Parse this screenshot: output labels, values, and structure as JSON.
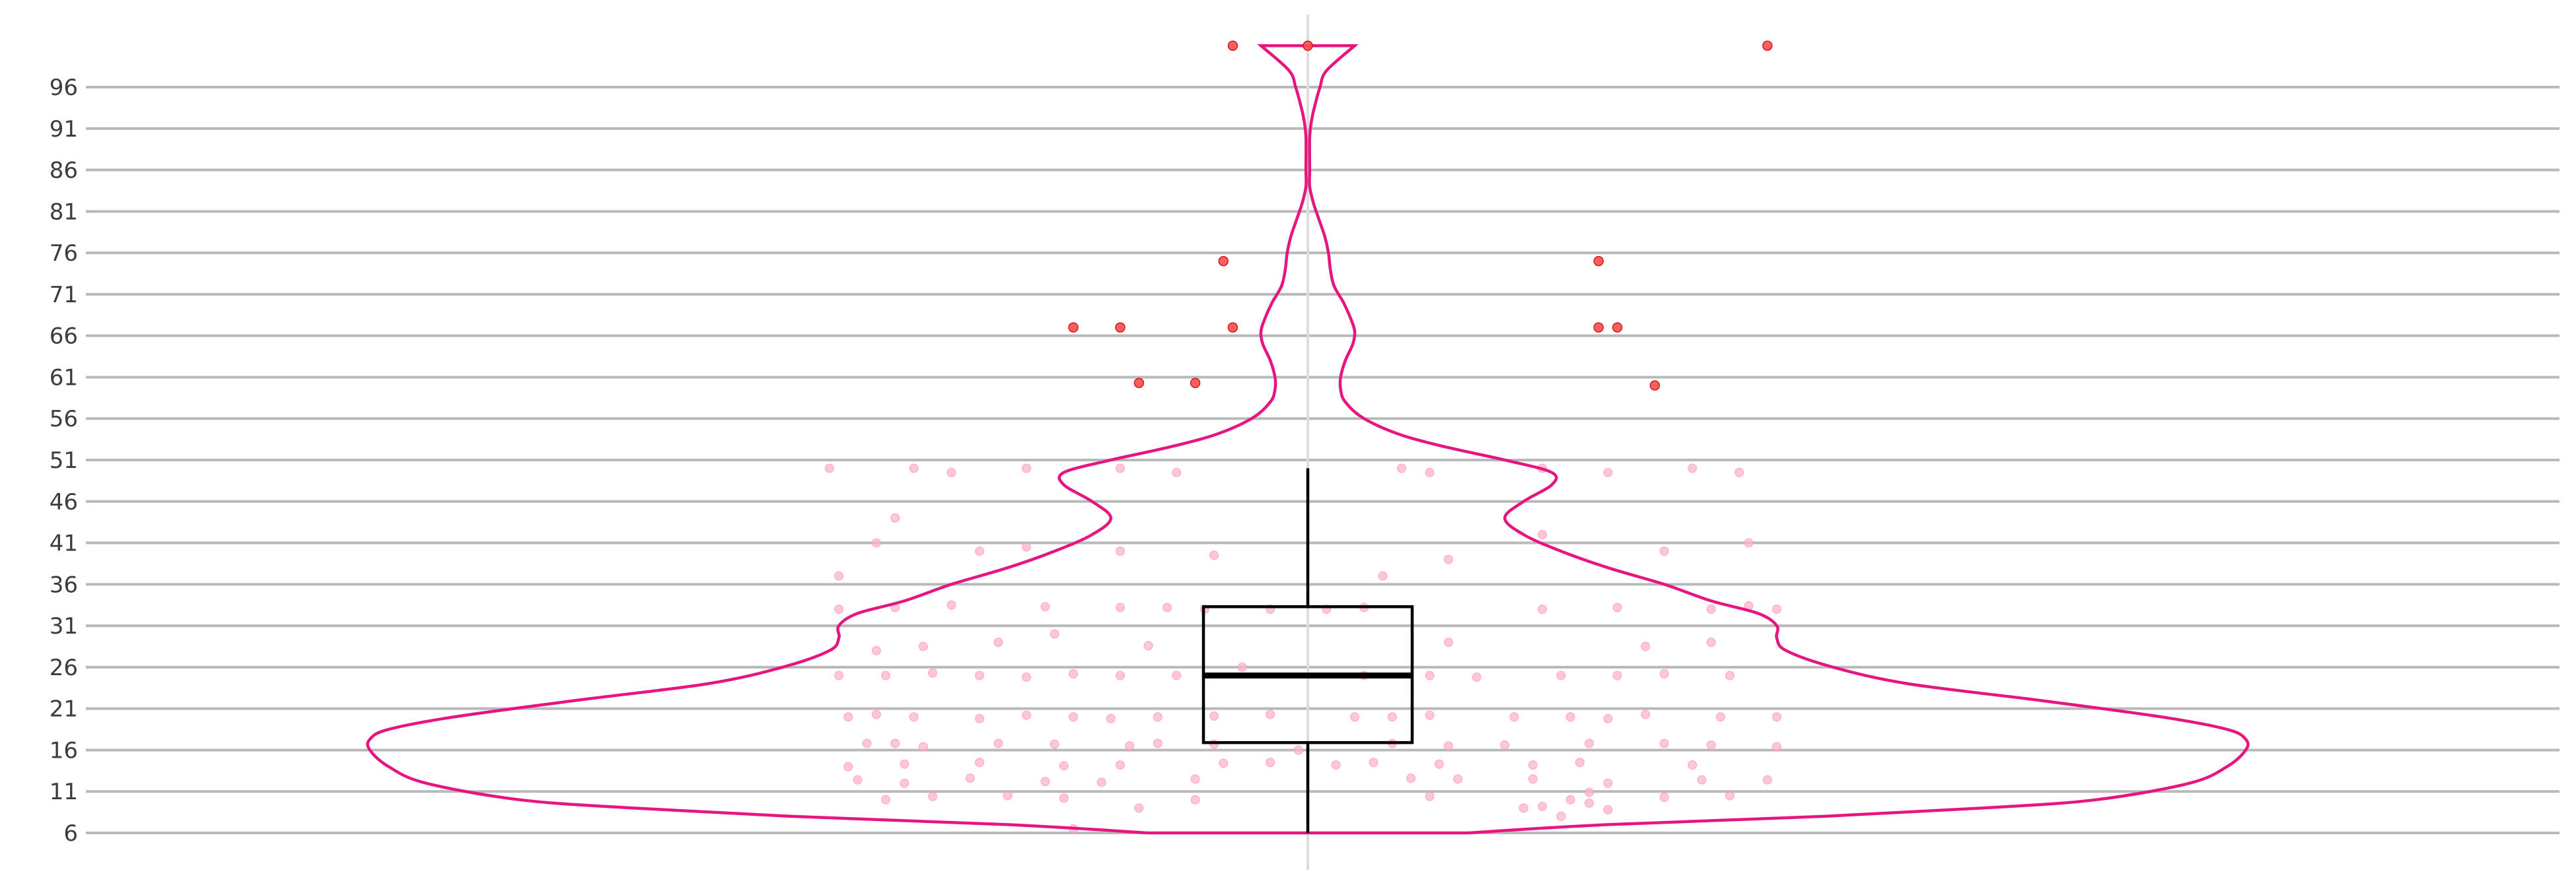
{
  "chart_data": {
    "type": "violin",
    "title": "",
    "xlabel": "",
    "ylabel": "",
    "ylim": [
      5,
      101
    ],
    "y_ticks": [
      6,
      11,
      16,
      21,
      26,
      31,
      36,
      41,
      46,
      51,
      56,
      61,
      66,
      71,
      76,
      81,
      86,
      91,
      96
    ],
    "y_tick_labels": [
      "6",
      "11",
      "16",
      "21",
      "26",
      "31",
      "36",
      "41",
      "46",
      "51",
      "56",
      "61",
      "66",
      "71",
      "76",
      "81",
      "86",
      "91",
      "96"
    ],
    "grid": true,
    "legend": "none",
    "box": {
      "min": 6,
      "q1": 16.9,
      "median": 25,
      "q3": 33.3,
      "max": 50
    },
    "violin_range": [
      6,
      101
    ],
    "violin_density": [
      [
        6,
        0.17
      ],
      [
        7,
        0.32
      ],
      [
        8,
        0.55
      ],
      [
        9,
        0.72
      ],
      [
        10,
        0.84
      ],
      [
        12,
        0.94
      ],
      [
        14,
        0.98
      ],
      [
        16,
        1.0
      ],
      [
        17.3,
        1.0
      ],
      [
        18.5,
        0.98
      ],
      [
        20,
        0.91
      ],
      [
        22,
        0.78
      ],
      [
        24,
        0.64
      ],
      [
        26,
        0.56
      ],
      [
        28,
        0.51
      ],
      [
        29.5,
        0.5
      ],
      [
        31,
        0.5
      ],
      [
        32.5,
        0.48
      ],
      [
        34,
        0.43
      ],
      [
        36,
        0.38
      ],
      [
        38,
        0.32
      ],
      [
        40,
        0.27
      ],
      [
        42,
        0.23
      ],
      [
        44,
        0.21
      ],
      [
        46,
        0.23
      ],
      [
        48,
        0.26
      ],
      [
        49.5,
        0.26
      ],
      [
        51,
        0.21
      ],
      [
        52.5,
        0.15
      ],
      [
        54,
        0.1
      ],
      [
        56,
        0.06
      ],
      [
        58,
        0.04
      ],
      [
        59.5,
        0.035
      ],
      [
        61,
        0.035
      ],
      [
        63,
        0.04
      ],
      [
        65,
        0.048
      ],
      [
        66.5,
        0.05
      ],
      [
        68,
        0.046
      ],
      [
        70,
        0.038
      ],
      [
        72,
        0.028
      ],
      [
        74,
        0.024
      ],
      [
        76,
        0.022
      ],
      [
        78,
        0.018
      ],
      [
        80,
        0.012
      ],
      [
        82,
        0.006
      ],
      [
        84,
        0.002
      ],
      [
        86,
        0.002
      ],
      [
        90,
        0.002
      ],
      [
        92,
        0.004
      ],
      [
        94,
        0.008
      ],
      [
        96,
        0.013
      ],
      [
        98,
        0.02
      ],
      [
        101,
        0.05
      ]
    ],
    "outliers": [
      [
        -0.08,
        101
      ],
      [
        0.0,
        101
      ],
      [
        0.49,
        101
      ],
      [
        -0.09,
        75
      ],
      [
        0.31,
        75
      ],
      [
        -0.25,
        67
      ],
      [
        -0.2,
        67
      ],
      [
        -0.08,
        67
      ],
      [
        0.31,
        67
      ],
      [
        0.33,
        67
      ],
      [
        -0.18,
        60.3
      ],
      [
        -0.12,
        60.3
      ],
      [
        0.37,
        60
      ]
    ],
    "points": [
      [
        -0.51,
        50
      ],
      [
        -0.42,
        50
      ],
      [
        -0.38,
        49.5
      ],
      [
        -0.3,
        50
      ],
      [
        -0.2,
        50
      ],
      [
        -0.14,
        49.5
      ],
      [
        0.1,
        50
      ],
      [
        0.13,
        49.5
      ],
      [
        0.25,
        50
      ],
      [
        0.32,
        49.5
      ],
      [
        0.41,
        50
      ],
      [
        0.46,
        49.5
      ],
      [
        -0.5,
        37
      ],
      [
        -0.46,
        41
      ],
      [
        -0.44,
        44
      ],
      [
        -0.35,
        40
      ],
      [
        -0.3,
        40.5
      ],
      [
        -0.2,
        40
      ],
      [
        -0.1,
        39.5
      ],
      [
        0.08,
        37
      ],
      [
        0.15,
        39
      ],
      [
        0.25,
        42
      ],
      [
        0.38,
        40
      ],
      [
        0.47,
        41
      ],
      [
        -0.5,
        33
      ],
      [
        -0.44,
        33.2
      ],
      [
        -0.38,
        33.5
      ],
      [
        -0.28,
        33.3
      ],
      [
        -0.2,
        33.2
      ],
      [
        -0.15,
        33.2
      ],
      [
        -0.11,
        33
      ],
      [
        -0.04,
        33
      ],
      [
        0.02,
        33
      ],
      [
        0.06,
        33.2
      ],
      [
        0.25,
        33
      ],
      [
        0.33,
        33.2
      ],
      [
        0.43,
        33
      ],
      [
        0.47,
        33.4
      ],
      [
        0.5,
        33
      ],
      [
        -0.46,
        28
      ],
      [
        -0.41,
        28.5
      ],
      [
        -0.33,
        29
      ],
      [
        -0.27,
        30
      ],
      [
        -0.17,
        28.6
      ],
      [
        0.15,
        29
      ],
      [
        0.36,
        28.5
      ],
      [
        0.43,
        29
      ],
      [
        -0.5,
        25
      ],
      [
        -0.45,
        25
      ],
      [
        -0.4,
        25.3
      ],
      [
        -0.35,
        25
      ],
      [
        -0.3,
        24.8
      ],
      [
        -0.25,
        25.2
      ],
      [
        -0.2,
        25
      ],
      [
        -0.14,
        25
      ],
      [
        -0.07,
        26
      ],
      [
        0.06,
        25
      ],
      [
        0.13,
        25
      ],
      [
        0.18,
        24.8
      ],
      [
        0.27,
        25
      ],
      [
        0.33,
        25
      ],
      [
        0.38,
        25.2
      ],
      [
        0.45,
        25
      ],
      [
        -0.49,
        20
      ],
      [
        -0.46,
        20.3
      ],
      [
        -0.42,
        20
      ],
      [
        -0.35,
        19.8
      ],
      [
        -0.3,
        20.2
      ],
      [
        -0.25,
        20
      ],
      [
        -0.21,
        19.8
      ],
      [
        -0.16,
        20
      ],
      [
        -0.1,
        20.1
      ],
      [
        -0.04,
        20.3
      ],
      [
        0.05,
        20
      ],
      [
        0.09,
        20
      ],
      [
        0.13,
        20.2
      ],
      [
        0.22,
        20
      ],
      [
        0.28,
        20
      ],
      [
        0.32,
        19.8
      ],
      [
        0.36,
        20.3
      ],
      [
        0.44,
        20
      ],
      [
        0.5,
        20
      ],
      [
        -0.47,
        16.8
      ],
      [
        -0.44,
        16.8
      ],
      [
        -0.41,
        16.4
      ],
      [
        -0.33,
        16.8
      ],
      [
        -0.27,
        16.7
      ],
      [
        -0.19,
        16.5
      ],
      [
        -0.16,
        16.8
      ],
      [
        -0.1,
        16.7
      ],
      [
        -0.01,
        16
      ],
      [
        0.09,
        16.8
      ],
      [
        0.15,
        16.5
      ],
      [
        0.21,
        16.6
      ],
      [
        0.3,
        16.8
      ],
      [
        0.38,
        16.8
      ],
      [
        0.43,
        16.6
      ],
      [
        0.5,
        16.4
      ],
      [
        -0.49,
        14
      ],
      [
        -0.43,
        14.3
      ],
      [
        -0.35,
        14.5
      ],
      [
        -0.26,
        14.1
      ],
      [
        -0.2,
        14.2
      ],
      [
        -0.09,
        14.4
      ],
      [
        -0.04,
        14.5
      ],
      [
        0.03,
        14.2
      ],
      [
        0.07,
        14.5
      ],
      [
        0.14,
        14.3
      ],
      [
        0.24,
        14.2
      ],
      [
        0.29,
        14.5
      ],
      [
        0.41,
        14.2
      ],
      [
        -0.48,
        12.4
      ],
      [
        -0.43,
        12
      ],
      [
        -0.36,
        12.6
      ],
      [
        -0.28,
        12.2
      ],
      [
        -0.22,
        12.1
      ],
      [
        -0.12,
        12.5
      ],
      [
        0.11,
        12.6
      ],
      [
        0.16,
        12.5
      ],
      [
        0.24,
        12.5
      ],
      [
        0.32,
        12
      ],
      [
        0.42,
        12.4
      ],
      [
        0.49,
        12.4
      ],
      [
        -0.45,
        10
      ],
      [
        -0.4,
        10.4
      ],
      [
        -0.32,
        10.5
      ],
      [
        -0.26,
        10.2
      ],
      [
        -0.12,
        10
      ],
      [
        0.13,
        10.4
      ],
      [
        0.28,
        10
      ],
      [
        0.3,
        10.9
      ],
      [
        0.38,
        10.3
      ],
      [
        0.45,
        10.5
      ],
      [
        -0.25,
        6.5
      ],
      [
        -0.18,
        9
      ],
      [
        0.23,
        9
      ],
      [
        0.25,
        9.2
      ],
      [
        0.27,
        8
      ],
      [
        0.3,
        9.6
      ],
      [
        0.32,
        8.8
      ]
    ]
  }
}
